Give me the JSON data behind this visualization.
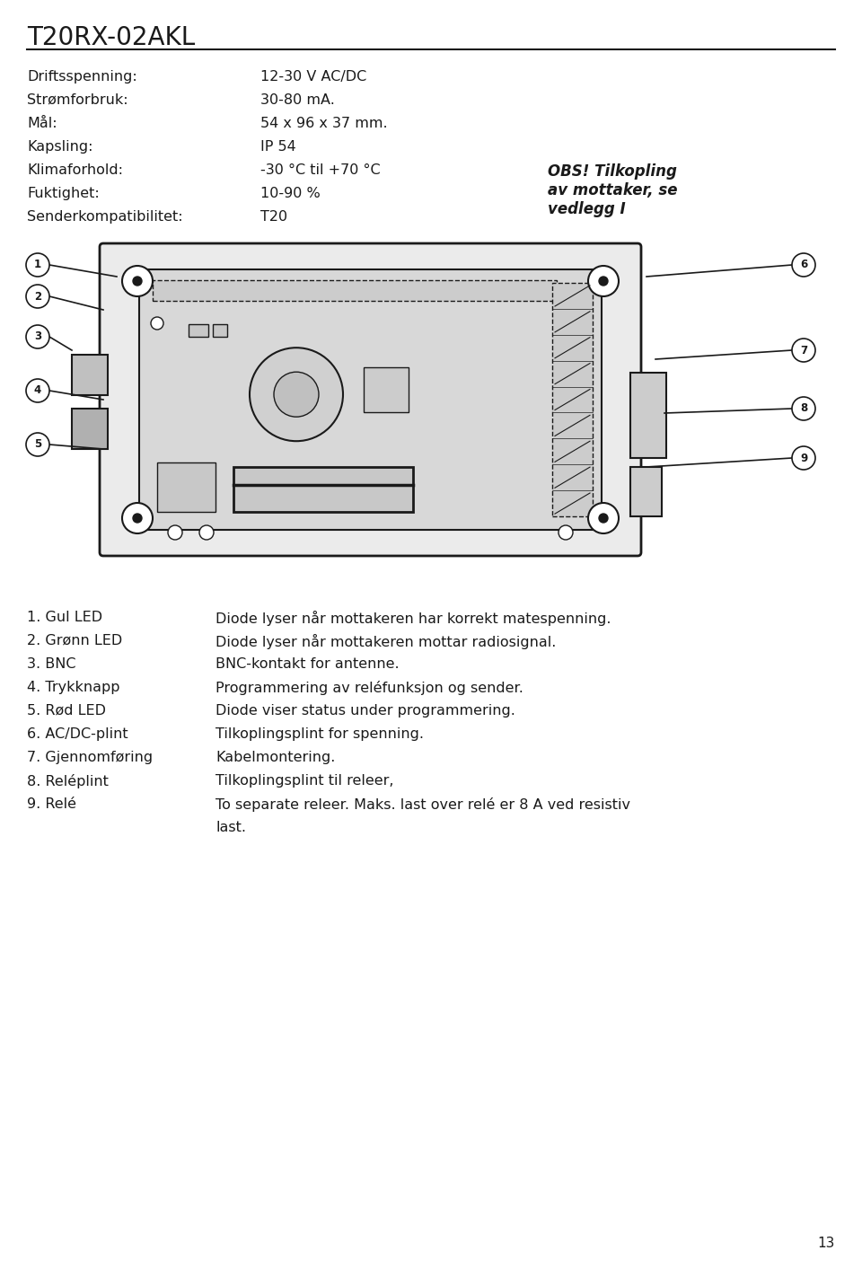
{
  "title": "T20RX-02AKL",
  "page_number": "13",
  "bg_color": "#ffffff",
  "text_color": "#1a1a1a",
  "specs": [
    [
      "Driftsspenning:",
      "12-30 V AC/DC"
    ],
    [
      "Strømforbruk:",
      "30-80 mA."
    ],
    [
      "Mål:",
      "54 x 96 x 37 mm."
    ],
    [
      "Kapsling:",
      "IP 54"
    ],
    [
      "Klimaforhold:",
      "-30 °C til +70 °C"
    ],
    [
      "Fuktighet:",
      "10-90 %"
    ],
    [
      "Senderkompatibilitet:",
      "T20"
    ]
  ],
  "obs_text": "OBS! Tilkopling\nav mottaker, se\nvedlegg I",
  "items": [
    [
      "1. Gul LED",
      "Diode lyser når mottakeren har korrekt matespenning."
    ],
    [
      "2. Grønn LED",
      "Diode lyser når mottakeren mottar radiosignal."
    ],
    [
      "3. BNC",
      "BNC-kontakt for antenne."
    ],
    [
      "4. Trykknapp",
      "Programmering av reléfunksjon og sender."
    ],
    [
      "5. Rød LED",
      "Diode viser status under programmering."
    ],
    [
      "6. AC/DC-plint",
      "Tilkoplingsplint for spenning."
    ],
    [
      "7. Gjennomføring",
      "Kabelmontering."
    ],
    [
      "8. Reléplint",
      "Tilkoplingsplint til releer,"
    ],
    [
      "9. Relé",
      "To separate releer. Maks. last over relé er 8 A ved resistiv\nlast."
    ]
  ],
  "title_fontsize": 18,
  "spec_fontsize": 11.5,
  "list_fontsize": 11.5,
  "obs_fontsize": 12
}
